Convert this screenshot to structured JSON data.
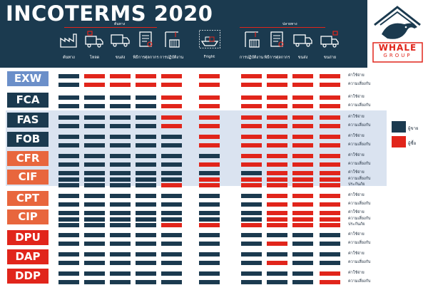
{
  "title": "INCOTERMS 2020",
  "logo": {
    "text_top": "WHALE",
    "text_bottom": "GROUP",
    "icon": "whale-house-logo-icon"
  },
  "groups": [
    {
      "label": "ต้นทาง"
    },
    {
      "label": "ปลายทาง"
    }
  ],
  "columns": [
    {
      "label": "ต้นทาง",
      "icon": "factory-icon"
    },
    {
      "label": "โหลด",
      "icon": "loading-truck-icon"
    },
    {
      "label": "ขนส่ง",
      "icon": "truck-icon"
    },
    {
      "label": "พิธีการศุลกากร",
      "icon": "customs-document-icon"
    },
    {
      "label": "การปฏิบัติงาน",
      "icon": "port-icon"
    },
    {
      "label": "Fright",
      "icon": "freight-ship-icon"
    },
    {
      "label": "การปฏิบัติงาน",
      "icon": "port-icon"
    },
    {
      "label": "พิธีการศุลกากร",
      "icon": "customs-document-icon"
    },
    {
      "label": "ขนส่ง",
      "icon": "truck-icon"
    },
    {
      "label": "ขนถ่าย",
      "icon": "unloading-truck-icon"
    }
  ],
  "colors": {
    "seller": "#1b3a4f",
    "buyer": "#e1251b",
    "header": "#1b3a4f",
    "term_seller": "#6b8fc9",
    "term_mid": "#1b3a4f",
    "term_orange": "#e8663d",
    "term_red": "#e1251b"
  },
  "legend": [
    {
      "label": "ผู้ขาย",
      "color": "#1b3a4f"
    },
    {
      "label": "ผู้ซื้อ",
      "color": "#e1251b"
    }
  ],
  "terms": [
    {
      "name": "EXW",
      "color": "#6b8fc9",
      "rows": [
        {
          "label": "ค่าใช้จ่าย",
          "cells": "SBBBBBBBBB"
        },
        {
          "label": "ความเสี่ยงกับ",
          "cells": "SBBBBBBBBB"
        }
      ]
    },
    {
      "name": "FCA",
      "color": "#1b3a4f",
      "rows": [
        {
          "label": "ค่าใช้จ่าย",
          "cells": "SSSSBBBBBB"
        },
        {
          "label": "ความเสี่ยงกับ",
          "cells": "SSSSBBBBBB"
        }
      ]
    },
    {
      "name": "FAS",
      "color": "#1b3a4f",
      "rows": [
        {
          "label": "ค่าใช้จ่าย",
          "cells": "SSSSBBBBBB"
        },
        {
          "label": "ความเสี่ยงกับ",
          "cells": "SSSSBBBBBB"
        }
      ]
    },
    {
      "name": "FOB",
      "color": "#1b3a4f",
      "rows": [
        {
          "label": "ค่าใช้จ่าย",
          "cells": "SSSSSBBBBB"
        },
        {
          "label": "ความเสี่ยงกับ",
          "cells": "SSSSSBBBBB"
        }
      ]
    },
    {
      "name": "CFR",
      "color": "#e8663d",
      "rows": [
        {
          "label": "ค่าใช้จ่าย",
          "cells": "SSSSSSBBBB"
        },
        {
          "label": "ความเสี่ยงกับ",
          "cells": "SSSSSBBBBB"
        }
      ]
    },
    {
      "name": "CIF",
      "color": "#e8663d",
      "rows": [
        {
          "label": "ค่าใช้จ่าย",
          "cells": "SSSSSSSBBB"
        },
        {
          "label": "ความเสี่ยงกับ",
          "cells": "SSSSSBBBBB"
        },
        {
          "label": "ประกันภัย",
          "cells": "SSSSBBBBBB"
        }
      ]
    },
    {
      "name": "CPT",
      "color": "#e8663d",
      "rows": [
        {
          "label": "ค่าใช้จ่าย",
          "cells": "SSSSSSSBBB"
        },
        {
          "label": "ความเสี่ยงกับ",
          "cells": "SSSSSSSBBB"
        }
      ]
    },
    {
      "name": "CIP",
      "color": "#e8663d",
      "rows": [
        {
          "label": "ค่าใช้จ่าย",
          "cells": "SSSSSSSBBB"
        },
        {
          "label": "ความเสี่ยงกับ",
          "cells": "SSSSSSSBBB"
        },
        {
          "label": "ประกันภัย",
          "cells": "SSSSBBBBBB"
        }
      ]
    },
    {
      "name": "DPU",
      "color": "#e1251b",
      "rows": [
        {
          "label": "ค่าใช้จ่าย",
          "cells": "SSSSSSSSSS"
        },
        {
          "label": "ความเสี่ยงกับ",
          "cells": "SSSSSSSBSS"
        }
      ]
    },
    {
      "name": "DAP",
      "color": "#e1251b",
      "rows": [
        {
          "label": "ค่าใช้จ่าย",
          "cells": "SSSSSSSSSS"
        },
        {
          "label": "ความเสี่ยงกับ",
          "cells": "SSSSSSSBSS"
        }
      ]
    },
    {
      "name": "DDP",
      "color": "#e1251b",
      "rows": [
        {
          "label": "ค่าใช้จ่าย",
          "cells": "SSSSSSSSSB"
        },
        {
          "label": "ความเสี่ยงกับ",
          "cells": "SSSSSSSSSB"
        }
      ]
    }
  ]
}
